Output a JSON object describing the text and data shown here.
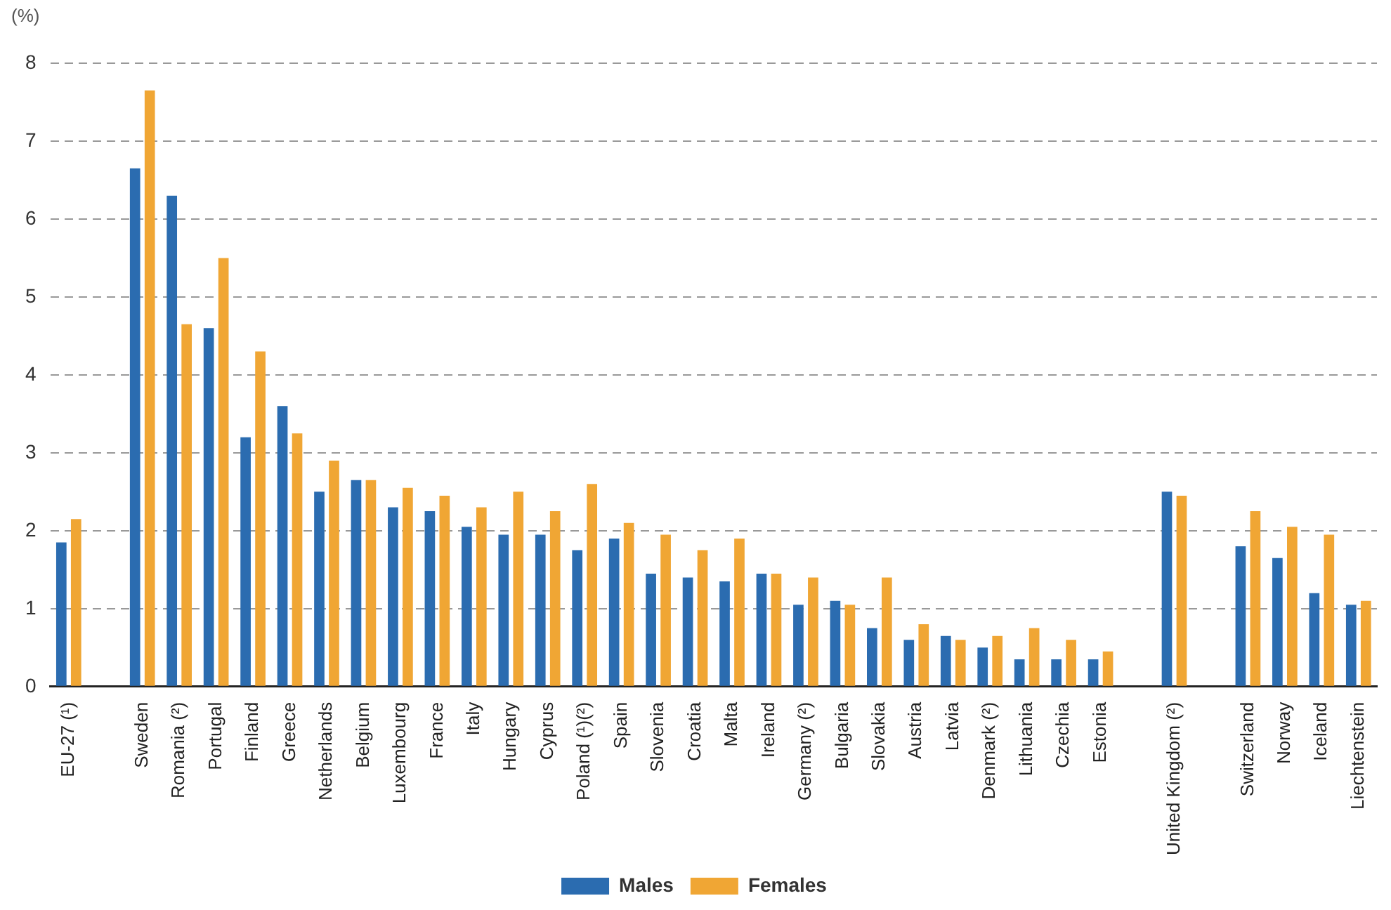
{
  "chart_data": {
    "type": "bar",
    "ylabel": "(%)",
    "categories": [
      "EU-27 (¹)",
      null,
      "Sweden",
      "Romania (²)",
      "Portugal",
      "Finland",
      "Greece",
      "Netherlands",
      "Belgium",
      "Luxembourg",
      "France",
      "Italy",
      "Hungary",
      "Cyprus",
      "Poland (¹)(²)",
      "Spain",
      "Slovenia",
      "Croatia",
      "Malta",
      "Ireland",
      "Germany (²)",
      "Bulgaria",
      "Slovakia",
      "Austria",
      "Latvia",
      "Denmark (²)",
      "Lithuania",
      "Czechia",
      "Estonia",
      null,
      "United Kingdom (²)",
      null,
      "Switzerland",
      "Norway",
      "Iceland",
      "Liechtenstein"
    ],
    "series": [
      {
        "name": "Males",
        "color": "#2b6cb0",
        "values": [
          1.85,
          null,
          6.65,
          6.3,
          4.6,
          3.2,
          3.6,
          2.5,
          2.65,
          2.3,
          2.25,
          2.05,
          1.95,
          1.95,
          1.75,
          1.9,
          1.45,
          1.4,
          1.35,
          1.45,
          1.05,
          1.1,
          0.75,
          0.6,
          0.65,
          0.5,
          0.35,
          0.35,
          0.35,
          null,
          2.5,
          null,
          1.8,
          1.65,
          1.2,
          1.05
        ]
      },
      {
        "name": "Females",
        "color": "#f0a634",
        "values": [
          2.15,
          null,
          7.65,
          4.65,
          5.5,
          4.3,
          3.25,
          2.9,
          2.65,
          2.55,
          2.45,
          2.3,
          2.5,
          2.25,
          2.6,
          2.1,
          1.95,
          1.75,
          1.9,
          1.45,
          1.4,
          1.05,
          1.4,
          0.8,
          0.6,
          0.65,
          0.75,
          0.6,
          0.45,
          null,
          2.45,
          null,
          2.25,
          2.05,
          1.95,
          1.1
        ]
      }
    ],
    "ylim": [
      0,
      8
    ],
    "yticks": [
      0,
      1,
      2,
      3,
      4,
      5,
      6,
      7,
      8
    ],
    "grid": "y",
    "legend": "bottom"
  }
}
